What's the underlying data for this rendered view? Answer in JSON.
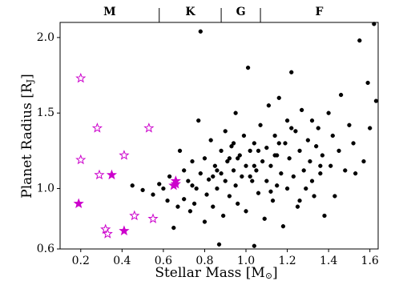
{
  "chart_data": {
    "type": "scatter",
    "xlabel": {
      "text": "Stellar Mass [M",
      "sub": "⊙",
      "end": "]"
    },
    "ylabel": {
      "text": "Planet Radius [R",
      "sub": "J",
      "end": "]"
    },
    "xlim": [
      0.1,
      1.64
    ],
    "ylim": [
      0.6,
      2.1
    ],
    "xticks": [
      0.2,
      0.4,
      0.6,
      0.8,
      {
        "value": 1.0,
        "label": "1.0"
      },
      1.2,
      1.4,
      1.6
    ],
    "yticks": [
      0.6,
      {
        "value": 1.0,
        "label": "1.0"
      },
      1.5,
      {
        "value": 2.0,
        "label": "2.0"
      }
    ],
    "top_categories": [
      "M",
      "K",
      "G",
      "F"
    ],
    "top_boundaries": [
      0.58,
      0.88,
      1.07
    ],
    "series": [
      {
        "color": "#000000",
        "marker": "circle",
        "filled": true,
        "x": [
          0.45,
          0.5,
          0.55,
          0.58,
          0.6,
          0.62,
          0.63,
          0.65,
          0.67,
          0.68,
          0.7,
          0.7,
          0.72,
          0.73,
          0.74,
          0.75,
          0.76,
          0.77,
          0.78,
          0.78,
          0.8,
          0.8,
          0.81,
          0.82,
          0.83,
          0.84,
          0.85,
          0.86,
          0.87,
          0.88,
          0.88,
          0.89,
          0.9,
          0.9,
          0.91,
          0.92,
          0.93,
          0.94,
          0.95,
          0.95,
          0.96,
          0.97,
          0.98,
          0.99,
          1.0,
          1.0,
          1.01,
          1.02,
          1.03,
          1.04,
          1.04,
          1.05,
          1.06,
          1.07,
          1.08,
          1.09,
          1.1,
          1.1,
          1.11,
          1.12,
          1.13,
          1.14,
          1.15,
          1.15,
          1.16,
          1.17,
          1.18,
          1.19,
          1.2,
          1.2,
          1.21,
          1.22,
          1.23,
          1.24,
          1.25,
          1.26,
          1.27,
          1.28,
          1.29,
          1.3,
          1.31,
          1.32,
          1.33,
          1.34,
          1.35,
          1.36,
          1.37,
          1.38,
          1.4,
          1.41,
          1.42,
          1.43,
          1.45,
          1.46,
          1.48,
          1.5,
          1.52,
          1.53,
          1.55,
          1.57,
          1.59,
          1.6,
          1.62,
          1.63,
          0.92,
          1.02,
          1.12,
          1.22,
          1.32,
          0.86,
          0.96,
          1.06,
          1.16,
          1.26,
          1.36,
          0.74,
          0.84,
          0.94,
          1.04,
          1.14
        ],
        "y": [
          1.02,
          0.99,
          0.96,
          1.03,
          1.0,
          0.92,
          1.08,
          0.74,
          0.88,
          1.25,
          1.12,
          0.93,
          1.05,
          0.85,
          1.18,
          0.9,
          1.0,
          1.45,
          2.04,
          1.1,
          0.78,
          1.2,
          0.96,
          1.06,
          1.32,
          0.88,
          1.15,
          1.0,
          0.63,
          1.25,
          1.1,
          0.82,
          1.38,
          1.05,
          1.18,
          0.95,
          1.28,
          1.12,
          1.02,
          1.5,
          0.9,
          1.22,
          1.08,
          1.35,
          1.15,
          0.85,
          1.8,
          1.25,
          1.05,
          0.62,
          1.3,
          1.12,
          0.97,
          1.42,
          1.18,
          0.8,
          1.27,
          1.05,
          1.55,
          1.15,
          0.92,
          1.35,
          1.22,
          1.02,
          1.6,
          1.1,
          0.75,
          1.3,
          1.45,
          1.0,
          1.2,
          1.77,
          1.08,
          1.38,
          0.88,
          1.25,
          1.52,
          1.12,
          1.0,
          1.32,
          1.18,
          1.45,
          0.95,
          1.28,
          1.4,
          1.1,
          1.22,
          0.82,
          1.5,
          1.15,
          1.35,
          0.95,
          1.25,
          1.62,
          1.12,
          1.42,
          1.3,
          1.1,
          1.98,
          1.18,
          1.7,
          1.4,
          2.09,
          1.58,
          1.2,
          1.08,
          0.98,
          1.4,
          1.05,
          1.12,
          1.2,
          1.25,
          1.3,
          0.92,
          1.15,
          1.02,
          1.08,
          1.3,
          1.15,
          1.22
        ]
      },
      {
        "color": "#cc00cc",
        "marker": "star",
        "filled": false,
        "x": [
          0.2,
          0.28,
          0.2,
          0.29,
          0.41,
          0.53,
          0.46,
          0.55,
          0.32,
          0.33
        ],
        "y": [
          1.73,
          1.4,
          1.19,
          1.09,
          1.22,
          1.4,
          0.82,
          0.8,
          0.73,
          0.7
        ]
      },
      {
        "color": "#cc00cc",
        "marker": "star",
        "filled": true,
        "x": [
          0.19,
          0.35,
          0.41,
          0.66,
          0.66,
          0.65
        ],
        "y": [
          0.9,
          1.09,
          0.72,
          1.05,
          1.03,
          1.02
        ]
      }
    ]
  }
}
